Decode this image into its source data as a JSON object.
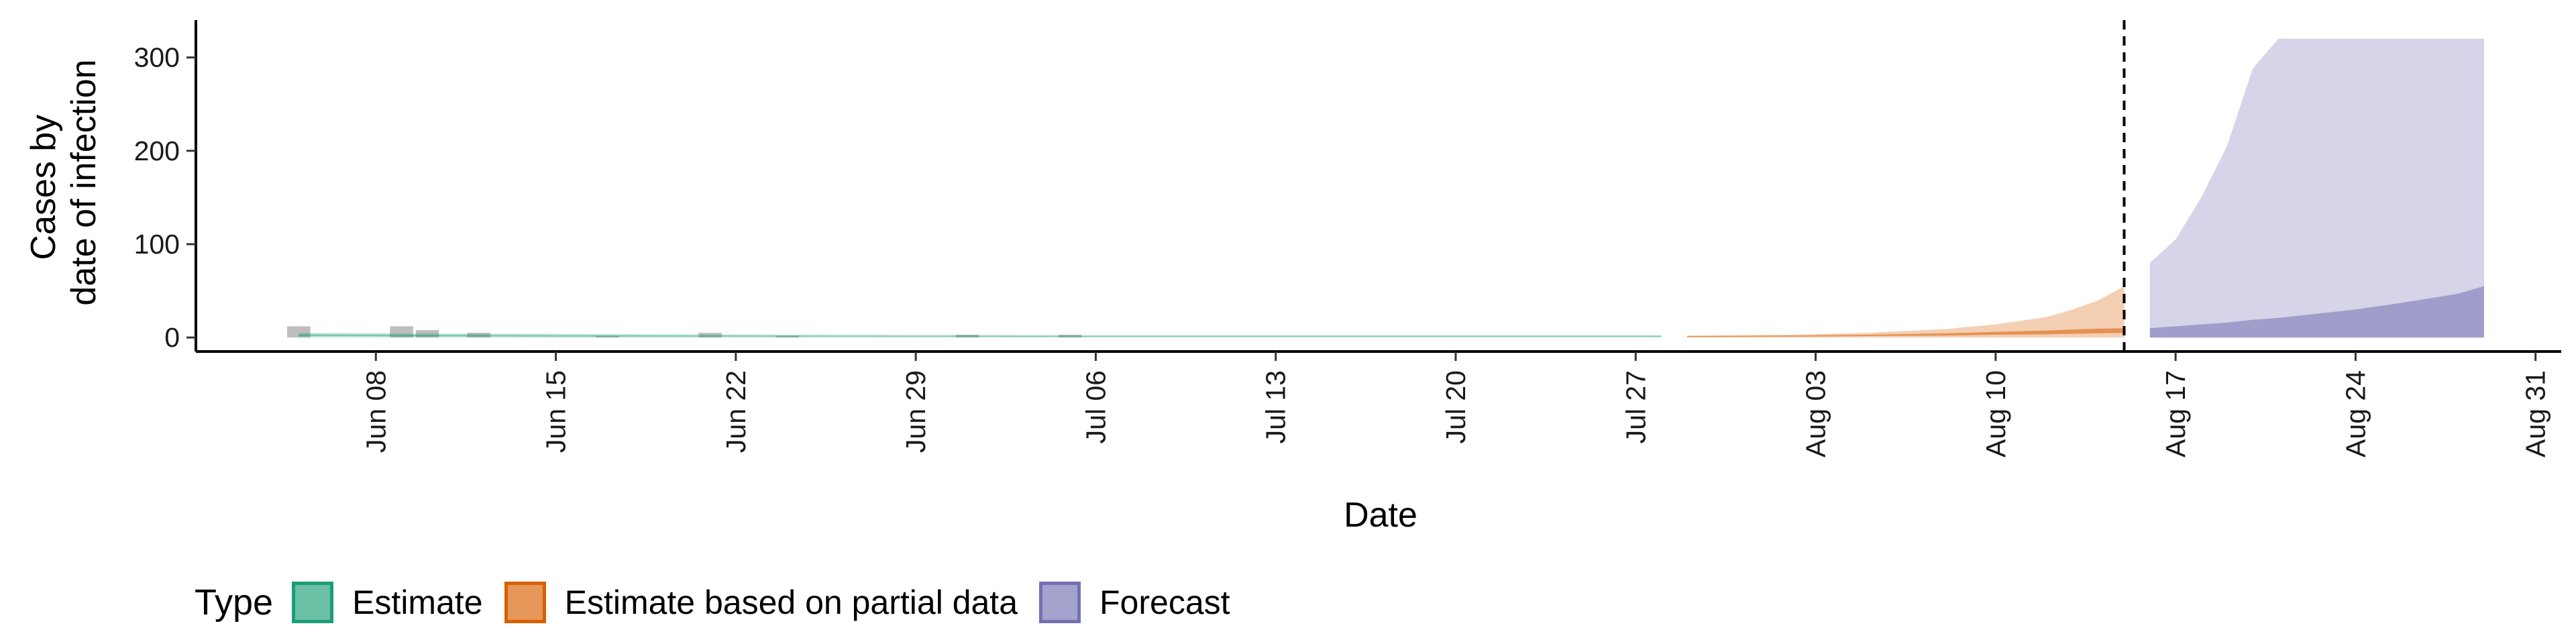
{
  "chart_data": {
    "type": "area",
    "title": "",
    "xlabel": "Date",
    "ylabel_lines": [
      "Cases by",
      "date of infection"
    ],
    "ylim": [
      -15,
      340
    ],
    "yticks": [
      0,
      100,
      200,
      300
    ],
    "xlim": [
      "2020-06-01",
      "2020-09-01"
    ],
    "xticks": [
      "2020-06-08",
      "2020-06-15",
      "2020-06-22",
      "2020-06-29",
      "2020-07-06",
      "2020-07-13",
      "2020-07-20",
      "2020-07-27",
      "2020-08-03",
      "2020-08-10",
      "2020-08-17",
      "2020-08-24",
      "2020-08-31"
    ],
    "xtick_labels": [
      "Jun 08",
      "Jun 15",
      "Jun 22",
      "Jun 29",
      "Jul 06",
      "Jul 13",
      "Jul 20",
      "Jul 27",
      "Aug 03",
      "Aug 10",
      "Aug 17",
      "Aug 24",
      "Aug 31"
    ],
    "vline": {
      "x": "2020-08-15",
      "style": "dashed"
    },
    "grid": false,
    "legend_position": "bottom",
    "legend_title": "Type",
    "colors": {
      "estimate": "#1b9e77",
      "partial": "#d95f02",
      "forecast": "#7570b3",
      "observed": "#b3b3b3"
    },
    "observed_cases": {
      "dates": [
        "2020-06-05",
        "2020-06-09",
        "2020-06-10",
        "2020-06-12",
        "2020-06-17",
        "2020-06-21",
        "2020-06-24",
        "2020-07-01",
        "2020-07-05"
      ],
      "values": [
        12,
        12,
        8,
        5,
        2,
        5,
        2,
        3,
        3
      ]
    },
    "series": [
      {
        "name": "Estimate",
        "key": "estimate",
        "dates": [
          "2020-06-05",
          "2020-06-15",
          "2020-06-25",
          "2020-07-05",
          "2020-07-15",
          "2020-07-28"
        ],
        "outer_low": [
          0,
          0,
          0,
          0,
          0,
          0
        ],
        "outer_high": [
          5,
          4,
          3,
          2.5,
          2.5,
          2.5
        ],
        "inner_low": [
          1.5,
          1,
          1,
          0.8,
          0.8,
          0.8
        ],
        "inner_high": [
          3.5,
          2.5,
          2,
          1.8,
          1.8,
          1.8
        ]
      },
      {
        "name": "Estimate based on partial data",
        "key": "partial",
        "dates": [
          "2020-07-29",
          "2020-08-02",
          "2020-08-05",
          "2020-08-08",
          "2020-08-10",
          "2020-08-12",
          "2020-08-13",
          "2020-08-14",
          "2020-08-15"
        ],
        "outer_low": [
          0,
          0,
          0,
          0,
          0,
          0,
          0,
          0,
          0
        ],
        "outer_high": [
          2,
          3,
          5,
          9,
          14,
          22,
          30,
          40,
          55
        ],
        "inner_low": [
          0.5,
          1,
          1.5,
          2,
          3,
          3.5,
          4,
          4.5,
          5
        ],
        "inner_high": [
          1.5,
          2,
          3,
          4.5,
          6,
          7.5,
          8.5,
          9.5,
          10
        ]
      },
      {
        "name": "Forecast",
        "key": "forecast",
        "dates": [
          "2020-08-16",
          "2020-08-17",
          "2020-08-18",
          "2020-08-19",
          "2020-08-20",
          "2020-08-21",
          "2020-08-22",
          "2020-08-24",
          "2020-08-26",
          "2020-08-28",
          "2020-08-29"
        ],
        "outer_low": [
          0,
          0,
          0,
          0,
          0,
          0,
          0,
          0,
          0,
          0,
          0
        ],
        "outer_high": [
          80,
          105,
          150,
          205,
          288,
          320,
          320,
          320,
          320,
          320,
          320
        ],
        "inner_low": [
          0,
          0,
          0,
          0,
          0,
          0,
          0,
          0,
          0,
          0,
          0
        ],
        "inner_high": [
          10,
          12,
          14,
          16,
          19,
          21,
          24,
          30,
          38,
          47,
          55
        ]
      }
    ]
  }
}
